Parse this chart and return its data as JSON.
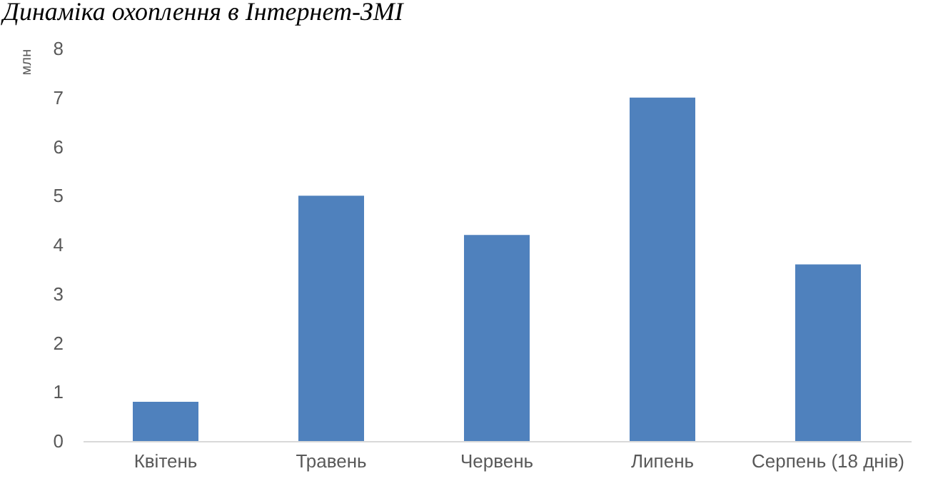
{
  "chart_data": {
    "type": "bar",
    "title": "Динаміка охоплення в Інтернет-ЗМІ",
    "ylabel": "млн",
    "categories": [
      "Квітень",
      "Травень",
      "Червень",
      "Липень",
      "Серпень (18 днів)"
    ],
    "values": [
      0.8,
      5.0,
      4.2,
      7.0,
      3.6
    ],
    "color": "#4f81bd",
    "ylim": [
      0,
      8
    ],
    "yticks": [
      0,
      1,
      2,
      3,
      4,
      5,
      6,
      7,
      8
    ],
    "grid": false
  }
}
